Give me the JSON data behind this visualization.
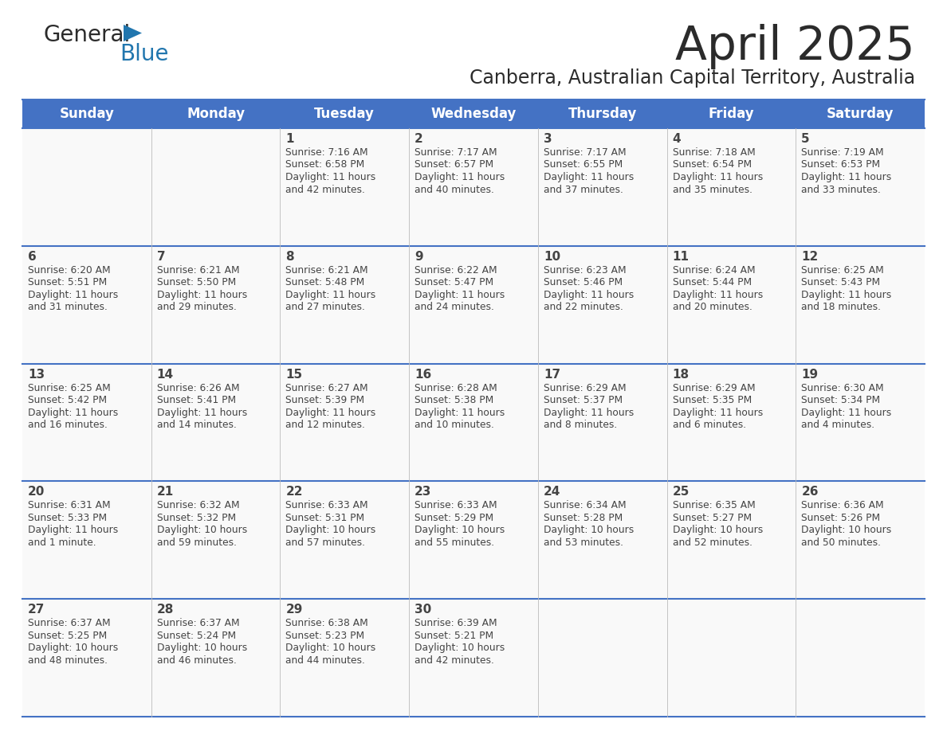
{
  "title": "April 2025",
  "subtitle": "Canberra, Australian Capital Territory, Australia",
  "header_bg": "#4472C4",
  "header_text_color": "#FFFFFF",
  "weekdays": [
    "Sunday",
    "Monday",
    "Tuesday",
    "Wednesday",
    "Thursday",
    "Friday",
    "Saturday"
  ],
  "cell_bg": "#F9F9F9",
  "cell_text_color": "#444444",
  "divider_color": "#4472C4",
  "title_color": "#2B2B2B",
  "subtitle_color": "#2B2B2B",
  "logo_general_color": "#2B2B2B",
  "logo_blue_color": "#2176AE",
  "days": [
    {
      "date": "",
      "sunrise": "",
      "sunset": "",
      "daylight": ""
    },
    {
      "date": "",
      "sunrise": "",
      "sunset": "",
      "daylight": ""
    },
    {
      "date": "1",
      "sunrise": "Sunrise: 7:16 AM",
      "sunset": "Sunset: 6:58 PM",
      "daylight": "Daylight: 11 hours\nand 42 minutes."
    },
    {
      "date": "2",
      "sunrise": "Sunrise: 7:17 AM",
      "sunset": "Sunset: 6:57 PM",
      "daylight": "Daylight: 11 hours\nand 40 minutes."
    },
    {
      "date": "3",
      "sunrise": "Sunrise: 7:17 AM",
      "sunset": "Sunset: 6:55 PM",
      "daylight": "Daylight: 11 hours\nand 37 minutes."
    },
    {
      "date": "4",
      "sunrise": "Sunrise: 7:18 AM",
      "sunset": "Sunset: 6:54 PM",
      "daylight": "Daylight: 11 hours\nand 35 minutes."
    },
    {
      "date": "5",
      "sunrise": "Sunrise: 7:19 AM",
      "sunset": "Sunset: 6:53 PM",
      "daylight": "Daylight: 11 hours\nand 33 minutes."
    },
    {
      "date": "6",
      "sunrise": "Sunrise: 6:20 AM",
      "sunset": "Sunset: 5:51 PM",
      "daylight": "Daylight: 11 hours\nand 31 minutes."
    },
    {
      "date": "7",
      "sunrise": "Sunrise: 6:21 AM",
      "sunset": "Sunset: 5:50 PM",
      "daylight": "Daylight: 11 hours\nand 29 minutes."
    },
    {
      "date": "8",
      "sunrise": "Sunrise: 6:21 AM",
      "sunset": "Sunset: 5:48 PM",
      "daylight": "Daylight: 11 hours\nand 27 minutes."
    },
    {
      "date": "9",
      "sunrise": "Sunrise: 6:22 AM",
      "sunset": "Sunset: 5:47 PM",
      "daylight": "Daylight: 11 hours\nand 24 minutes."
    },
    {
      "date": "10",
      "sunrise": "Sunrise: 6:23 AM",
      "sunset": "Sunset: 5:46 PM",
      "daylight": "Daylight: 11 hours\nand 22 minutes."
    },
    {
      "date": "11",
      "sunrise": "Sunrise: 6:24 AM",
      "sunset": "Sunset: 5:44 PM",
      "daylight": "Daylight: 11 hours\nand 20 minutes."
    },
    {
      "date": "12",
      "sunrise": "Sunrise: 6:25 AM",
      "sunset": "Sunset: 5:43 PM",
      "daylight": "Daylight: 11 hours\nand 18 minutes."
    },
    {
      "date": "13",
      "sunrise": "Sunrise: 6:25 AM",
      "sunset": "Sunset: 5:42 PM",
      "daylight": "Daylight: 11 hours\nand 16 minutes."
    },
    {
      "date": "14",
      "sunrise": "Sunrise: 6:26 AM",
      "sunset": "Sunset: 5:41 PM",
      "daylight": "Daylight: 11 hours\nand 14 minutes."
    },
    {
      "date": "15",
      "sunrise": "Sunrise: 6:27 AM",
      "sunset": "Sunset: 5:39 PM",
      "daylight": "Daylight: 11 hours\nand 12 minutes."
    },
    {
      "date": "16",
      "sunrise": "Sunrise: 6:28 AM",
      "sunset": "Sunset: 5:38 PM",
      "daylight": "Daylight: 11 hours\nand 10 minutes."
    },
    {
      "date": "17",
      "sunrise": "Sunrise: 6:29 AM",
      "sunset": "Sunset: 5:37 PM",
      "daylight": "Daylight: 11 hours\nand 8 minutes."
    },
    {
      "date": "18",
      "sunrise": "Sunrise: 6:29 AM",
      "sunset": "Sunset: 5:35 PM",
      "daylight": "Daylight: 11 hours\nand 6 minutes."
    },
    {
      "date": "19",
      "sunrise": "Sunrise: 6:30 AM",
      "sunset": "Sunset: 5:34 PM",
      "daylight": "Daylight: 11 hours\nand 4 minutes."
    },
    {
      "date": "20",
      "sunrise": "Sunrise: 6:31 AM",
      "sunset": "Sunset: 5:33 PM",
      "daylight": "Daylight: 11 hours\nand 1 minute."
    },
    {
      "date": "21",
      "sunrise": "Sunrise: 6:32 AM",
      "sunset": "Sunset: 5:32 PM",
      "daylight": "Daylight: 10 hours\nand 59 minutes."
    },
    {
      "date": "22",
      "sunrise": "Sunrise: 6:33 AM",
      "sunset": "Sunset: 5:31 PM",
      "daylight": "Daylight: 10 hours\nand 57 minutes."
    },
    {
      "date": "23",
      "sunrise": "Sunrise: 6:33 AM",
      "sunset": "Sunset: 5:29 PM",
      "daylight": "Daylight: 10 hours\nand 55 minutes."
    },
    {
      "date": "24",
      "sunrise": "Sunrise: 6:34 AM",
      "sunset": "Sunset: 5:28 PM",
      "daylight": "Daylight: 10 hours\nand 53 minutes."
    },
    {
      "date": "25",
      "sunrise": "Sunrise: 6:35 AM",
      "sunset": "Sunset: 5:27 PM",
      "daylight": "Daylight: 10 hours\nand 52 minutes."
    },
    {
      "date": "26",
      "sunrise": "Sunrise: 6:36 AM",
      "sunset": "Sunset: 5:26 PM",
      "daylight": "Daylight: 10 hours\nand 50 minutes."
    },
    {
      "date": "27",
      "sunrise": "Sunrise: 6:37 AM",
      "sunset": "Sunset: 5:25 PM",
      "daylight": "Daylight: 10 hours\nand 48 minutes."
    },
    {
      "date": "28",
      "sunrise": "Sunrise: 6:37 AM",
      "sunset": "Sunset: 5:24 PM",
      "daylight": "Daylight: 10 hours\nand 46 minutes."
    },
    {
      "date": "29",
      "sunrise": "Sunrise: 6:38 AM",
      "sunset": "Sunset: 5:23 PM",
      "daylight": "Daylight: 10 hours\nand 44 minutes."
    },
    {
      "date": "30",
      "sunrise": "Sunrise: 6:39 AM",
      "sunset": "Sunset: 5:21 PM",
      "daylight": "Daylight: 10 hours\nand 42 minutes."
    },
    {
      "date": "",
      "sunrise": "",
      "sunset": "",
      "daylight": ""
    },
    {
      "date": "",
      "sunrise": "",
      "sunset": "",
      "daylight": ""
    },
    {
      "date": "",
      "sunrise": "",
      "sunset": "",
      "daylight": ""
    },
    {
      "date": "",
      "sunrise": "",
      "sunset": "",
      "daylight": ""
    }
  ]
}
